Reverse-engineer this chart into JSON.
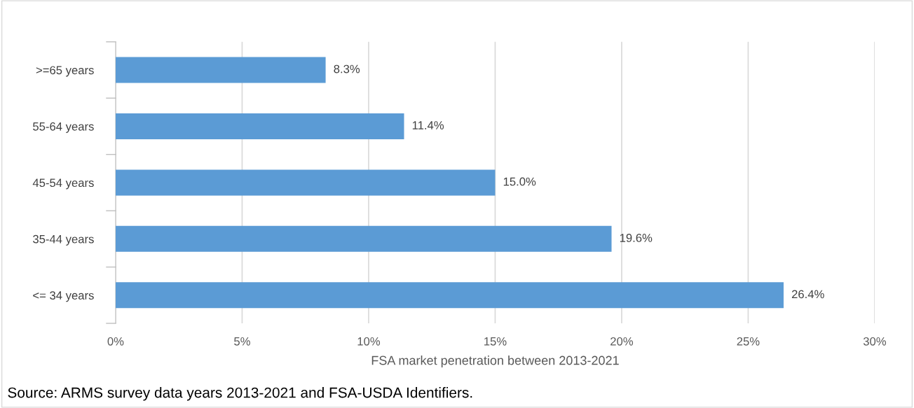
{
  "chart_data": {
    "type": "bar",
    "orientation": "horizontal",
    "categories": [
      ">=65 years",
      "55-64 years",
      "45-54 years",
      "35-44 years",
      "<= 34 years"
    ],
    "values": [
      8.3,
      11.4,
      15.0,
      19.6,
      26.4
    ],
    "value_labels": [
      "8.3%",
      "11.4%",
      "15.0%",
      "19.6%",
      "26.4%"
    ],
    "color": "#5b9bd5",
    "xlim": [
      0,
      30
    ],
    "xticks": [
      {
        "value": 0,
        "label": "0%"
      },
      {
        "value": 5,
        "label": "5%"
      },
      {
        "value": 10,
        "label": "10%"
      },
      {
        "value": 15,
        "label": "15%"
      },
      {
        "value": 20,
        "label": "20%"
      },
      {
        "value": 25,
        "label": "25%"
      },
      {
        "value": 30,
        "label": "30%"
      }
    ],
    "xlabel": "FSA market penetration between 2013-2021",
    "grid": "x",
    "annotations": [
      "Source: ARMS survey data years 2013-2021 and FSA-USDA Identifiers."
    ]
  }
}
